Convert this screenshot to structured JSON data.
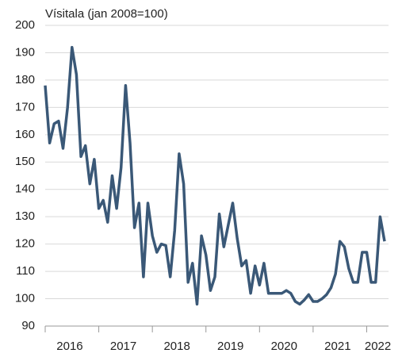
{
  "chart_data": {
    "type": "line",
    "title": "Vísitala (jan 2008=100)",
    "categories": [
      null,
      null,
      null,
      null,
      null,
      null,
      "2016",
      null,
      null,
      null,
      null,
      null,
      null,
      null,
      null,
      null,
      null,
      null,
      "2017",
      null,
      null,
      null,
      null,
      null,
      null,
      null,
      null,
      null,
      null,
      null,
      "2018",
      null,
      null,
      null,
      null,
      null,
      null,
      null,
      null,
      null,
      null,
      null,
      "2019",
      null,
      null,
      null,
      null,
      null,
      null,
      null,
      null,
      null,
      null,
      null,
      "2020",
      null,
      null,
      null,
      null,
      null,
      null,
      null,
      null,
      null,
      null,
      null,
      "2021",
      null,
      null,
      null,
      null,
      null,
      null,
      null,
      null,
      "2022",
      null
    ],
    "series": [
      {
        "name": "Vísitala",
        "color": "#3a5877",
        "values": [
          178,
          157,
          164,
          165,
          155,
          170,
          192,
          182,
          152,
          156,
          142,
          151,
          133,
          136,
          128,
          145,
          133,
          148,
          178,
          157,
          126,
          135,
          108,
          135,
          123,
          117,
          120,
          119.5,
          108,
          125,
          153,
          142,
          106,
          113,
          98,
          123,
          116,
          103,
          108,
          131,
          119,
          127,
          135,
          122,
          112,
          114,
          102,
          112,
          105,
          113,
          102,
          102,
          102,
          102,
          103,
          102,
          99,
          98,
          99.5,
          101.5,
          99,
          99,
          100,
          101.5,
          104,
          109,
          121,
          119,
          111,
          106,
          106,
          117,
          117,
          106,
          106,
          130,
          121
        ]
      }
    ],
    "ylim": [
      90,
      200
    ],
    "yticks": [
      90,
      100,
      110,
      120,
      130,
      140,
      150,
      160,
      170,
      180,
      190,
      200
    ],
    "grid": true
  }
}
